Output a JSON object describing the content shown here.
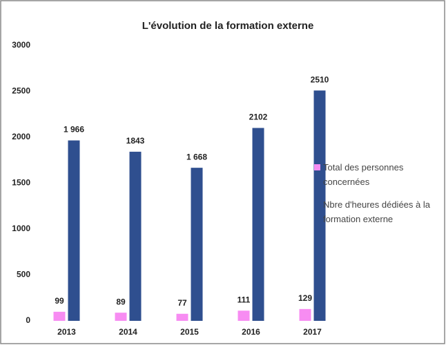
{
  "chart_data": {
    "type": "bar",
    "title": "L'évolution de la formation externe",
    "categories": [
      "2013",
      "2014",
      "2015",
      "2016",
      "2017"
    ],
    "series": [
      {
        "name": "Total des personnes concernées",
        "color": "#f78cf2",
        "values": [
          99,
          89,
          77,
          111,
          129
        ]
      },
      {
        "name": "Nbre d'heures dédiées à la formation externe",
        "color": "#2f4f8f",
        "values": [
          1966,
          1843,
          1668,
          2102,
          2510
        ],
        "value_labels": [
          "1 966",
          "1843",
          "1 668",
          "2102",
          "2510"
        ]
      }
    ],
    "ylim": [
      0,
      3000
    ],
    "yticks": [
      0,
      500,
      1000,
      1500,
      2000,
      2500,
      3000
    ],
    "grid": false,
    "legend": "right"
  }
}
